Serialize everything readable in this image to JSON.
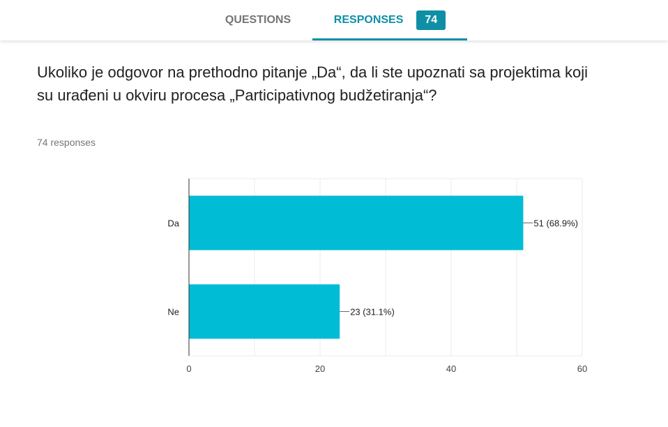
{
  "tabs": {
    "questions_label": "QUESTIONS",
    "responses_label": "RESPONSES",
    "responses_count": "74"
  },
  "question": {
    "text": "Ukoliko je odgovor na prethodno pitanje „Da“, da li ste upoznati sa projektima koji su urađeni u okviru procesa „Participativnog budžetiranja“?",
    "response_count_text": "74 responses"
  },
  "colors": {
    "accent": "#0e8fa6",
    "bar": "#00bcd4"
  },
  "chart_data": {
    "type": "bar",
    "orientation": "horizontal",
    "categories": [
      "Da",
      "Ne"
    ],
    "values": [
      51,
      23
    ],
    "data_labels": [
      "51 (68.9%)",
      "23 (31.1%)"
    ],
    "xlim": [
      0,
      60
    ],
    "x_ticks": [
      0,
      20,
      40,
      60
    ],
    "grid": true,
    "title": "",
    "xlabel": "",
    "ylabel": ""
  }
}
